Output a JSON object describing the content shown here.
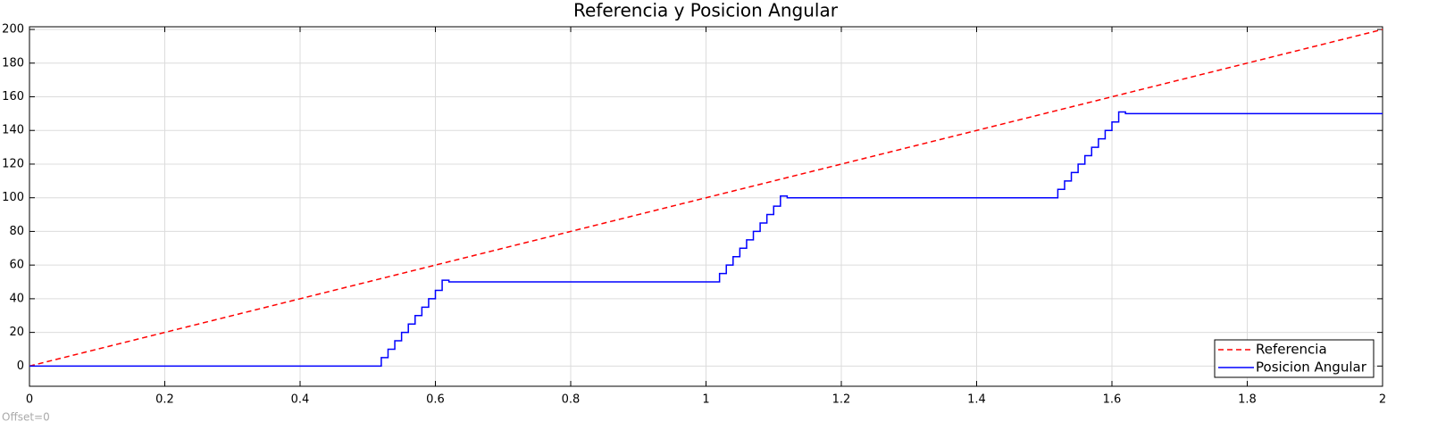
{
  "chart_data": {
    "type": "line",
    "title": "Referencia y Posicion Angular",
    "annotation": "Offset=0",
    "xlim": [
      0,
      2
    ],
    "xticks": [
      0,
      0.2,
      0.4,
      0.6,
      0.8,
      1,
      1.2,
      1.4,
      1.6,
      1.8,
      2
    ],
    "ylim": [
      -12,
      201.6
    ],
    "yticks": [
      0,
      20,
      40,
      60,
      80,
      100,
      120,
      140,
      160,
      180,
      200
    ],
    "grid": true,
    "legend": "lower right",
    "series": [
      {
        "name": "Referencia",
        "color": "#ff0000",
        "dashed": true,
        "x": [
          0,
          2
        ],
        "values": [
          0,
          200
        ]
      },
      {
        "name": "Posicion Angular",
        "color": "#0000ff",
        "dashed": false,
        "x": [
          0,
          0.52,
          0.52,
          0.53,
          0.53,
          0.54,
          0.54,
          0.55,
          0.55,
          0.56,
          0.56,
          0.57,
          0.57,
          0.58,
          0.58,
          0.59,
          0.59,
          0.6,
          0.6,
          0.61,
          0.61,
          0.62,
          0.62,
          1.02,
          1.02,
          1.03,
          1.03,
          1.04,
          1.04,
          1.05,
          1.05,
          1.06,
          1.06,
          1.07,
          1.07,
          1.08,
          1.08,
          1.09,
          1.09,
          1.1,
          1.1,
          1.11,
          1.11,
          1.12,
          1.12,
          1.52,
          1.52,
          1.53,
          1.53,
          1.54,
          1.54,
          1.55,
          1.55,
          1.56,
          1.56,
          1.57,
          1.57,
          1.58,
          1.58,
          1.59,
          1.59,
          1.6,
          1.6,
          1.61,
          1.61,
          1.62,
          1.62,
          2
        ],
        "values": [
          0,
          0,
          5,
          5,
          10,
          10,
          15,
          15,
          20,
          20,
          25,
          25,
          30,
          30,
          35,
          35,
          40,
          40,
          45,
          45,
          51,
          51,
          50,
          50,
          55,
          55,
          60,
          60,
          65,
          65,
          70,
          70,
          75,
          75,
          80,
          80,
          85,
          85,
          90,
          90,
          95,
          95,
          101,
          101,
          100,
          100,
          105,
          105,
          110,
          110,
          115,
          115,
          120,
          120,
          125,
          125,
          130,
          130,
          135,
          135,
          140,
          140,
          145,
          145,
          151,
          151,
          150,
          150
        ]
      }
    ]
  }
}
